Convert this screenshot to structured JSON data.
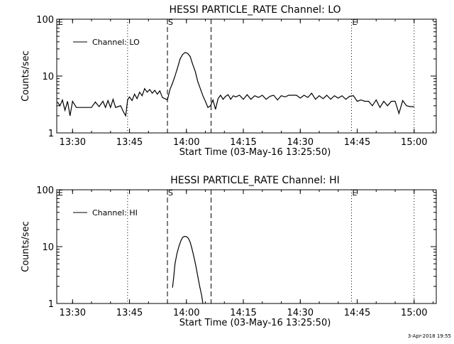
{
  "footer_timestamp": "3-Apr-2018 19:55",
  "chart_data": [
    {
      "type": "line",
      "title": "HESSI PARTICLE_RATE Channel: LO",
      "xlabel": "Start Time (03-May-16 13:25:50)",
      "ylabel": "Counts/sec",
      "yscale": "log",
      "ylim": [
        1,
        100
      ],
      "xlim": [
        "13:25:50",
        "15:05:50"
      ],
      "xticks": [
        "13:30",
        "13:45",
        "14:00",
        "14:15",
        "14:30",
        "14:45",
        "15:00"
      ],
      "yticks": [
        "1",
        "10",
        "100"
      ],
      "legend": {
        "position": "top-left",
        "entries": [
          "Channel: LO"
        ]
      },
      "markers": [
        {
          "time": "13:44:30",
          "label": "",
          "style": "dotted"
        },
        {
          "time": "13:55:00",
          "label": "S",
          "style": "dashed"
        },
        {
          "time": "14:06:30",
          "label": "",
          "style": "dashed"
        },
        {
          "time": "14:43:30",
          "label": "E",
          "style": "dotted"
        },
        {
          "time": "15:00:00",
          "label": "",
          "style": "dotted"
        }
      ],
      "corner_labels": [
        "E"
      ],
      "series": [
        {
          "name": "Channel: LO",
          "x": [
            "13:26:00",
            "13:26:40",
            "13:27:20",
            "13:28:00",
            "13:28:40",
            "13:29:20",
            "13:30:00",
            "13:31:00",
            "13:32:00",
            "13:33:00",
            "13:34:00",
            "13:35:00",
            "13:36:00",
            "13:37:00",
            "13:38:00",
            "13:38:40",
            "13:39:20",
            "13:40:00",
            "13:40:40",
            "13:41:20",
            "13:42:00",
            "13:42:40",
            "13:43:20",
            "13:44:00",
            "13:44:30",
            "13:45:00",
            "13:45:40",
            "13:46:20",
            "13:47:00",
            "13:47:40",
            "13:48:20",
            "13:49:00",
            "13:49:40",
            "13:50:20",
            "13:51:00",
            "13:51:40",
            "13:52:20",
            "13:53:00",
            "13:53:40",
            "13:54:20",
            "13:55:00",
            "13:55:40",
            "13:56:20",
            "13:57:00",
            "13:57:40",
            "13:58:20",
            "13:59:00",
            "13:59:40",
            "14:00:20",
            "14:01:00",
            "14:01:40",
            "14:02:20",
            "14:03:00",
            "14:03:40",
            "14:04:20",
            "14:05:00",
            "14:05:40",
            "14:06:20",
            "14:07:00",
            "14:07:40",
            "14:08:20",
            "14:09:00",
            "14:09:40",
            "14:10:20",
            "14:11:00",
            "14:11:40",
            "14:12:20",
            "14:13:00",
            "14:14:00",
            "14:15:00",
            "14:16:00",
            "14:17:00",
            "14:18:00",
            "14:19:00",
            "14:20:00",
            "14:21:00",
            "14:22:00",
            "14:23:00",
            "14:24:00",
            "14:25:00",
            "14:26:00",
            "14:27:00",
            "14:28:00",
            "14:29:00",
            "14:30:00",
            "14:31:00",
            "14:32:00",
            "14:33:00",
            "14:34:00",
            "14:35:00",
            "14:36:00",
            "14:37:00",
            "14:38:00",
            "14:39:00",
            "14:40:00",
            "14:41:00",
            "14:42:00",
            "14:43:00",
            "14:44:00",
            "14:45:00",
            "14:46:00",
            "14:47:00",
            "14:48:00",
            "14:49:00",
            "14:50:00",
            "14:51:00",
            "14:52:00",
            "14:53:00",
            "14:54:00",
            "14:55:00",
            "14:56:00",
            "14:57:00",
            "14:58:00",
            "14:59:00",
            "15:00:00"
          ],
          "y": [
            3.5,
            3.0,
            3.8,
            2.5,
            3.6,
            2.0,
            3.6,
            2.8,
            2.8,
            2.8,
            2.8,
            2.8,
            3.5,
            2.9,
            3.6,
            2.8,
            3.7,
            2.8,
            3.9,
            2.8,
            2.9,
            3.0,
            2.4,
            2.0,
            3.8,
            4.3,
            3.7,
            4.8,
            4.0,
            5.2,
            4.5,
            6.0,
            5.2,
            5.8,
            5.0,
            5.6,
            4.8,
            5.5,
            4.2,
            4.0,
            3.8,
            5.8,
            7.5,
            10.0,
            14.0,
            20.0,
            24.0,
            26.0,
            25.0,
            22.0,
            16.0,
            12.0,
            8.0,
            6.0,
            4.5,
            3.6,
            2.8,
            3.0,
            3.8,
            2.6,
            4.0,
            4.6,
            3.9,
            4.4,
            4.7,
            3.9,
            4.5,
            4.3,
            4.6,
            3.9,
            4.7,
            3.9,
            4.5,
            4.2,
            4.6,
            3.9,
            4.4,
            4.6,
            3.8,
            4.5,
            4.3,
            4.6,
            4.6,
            4.6,
            4.1,
            4.6,
            4.2,
            5.0,
            3.9,
            4.5,
            4.0,
            4.6,
            3.9,
            4.5,
            4.1,
            4.5,
            3.9,
            4.4,
            4.5,
            3.6,
            3.8,
            3.6,
            3.6,
            3.0,
            3.8,
            2.8,
            3.6,
            3.0,
            3.6,
            3.6,
            2.2,
            3.7,
            3.0,
            2.9,
            2.9
          ]
        }
      ]
    },
    {
      "type": "line",
      "title": "HESSI PARTICLE_RATE Channel: HI",
      "xlabel": "Start Time (03-May-16 13:25:50)",
      "ylabel": "Counts/sec",
      "yscale": "log",
      "ylim": [
        1,
        100
      ],
      "xlim": [
        "13:25:50",
        "15:05:50"
      ],
      "xticks": [
        "13:30",
        "13:45",
        "14:00",
        "14:15",
        "14:30",
        "14:45",
        "15:00"
      ],
      "yticks": [
        "1",
        "10",
        "100"
      ],
      "legend": {
        "position": "top-left",
        "entries": [
          "Channel: HI"
        ]
      },
      "markers": [
        {
          "time": "13:44:30",
          "label": "",
          "style": "dotted"
        },
        {
          "time": "13:55:00",
          "label": "S",
          "style": "dashed"
        },
        {
          "time": "14:06:30",
          "label": "",
          "style": "dashed"
        },
        {
          "time": "14:43:30",
          "label": "E",
          "style": "dotted"
        },
        {
          "time": "15:00:00",
          "label": "",
          "style": "dotted"
        }
      ],
      "corner_labels": [
        "E"
      ],
      "series": [
        {
          "name": "Channel: HI",
          "x": [
            "13:56:20",
            "13:56:40",
            "13:57:00",
            "13:57:30",
            "13:58:00",
            "13:58:30",
            "13:59:00",
            "13:59:30",
            "14:00:00",
            "14:00:30",
            "14:01:00",
            "14:01:30",
            "14:02:00",
            "14:02:30",
            "14:03:00",
            "14:03:30",
            "14:04:00",
            "14:04:20"
          ],
          "y": [
            1.9,
            3.0,
            5.0,
            7.5,
            10.0,
            12.5,
            14.5,
            15.2,
            15.0,
            14.0,
            12.0,
            9.0,
            6.5,
            4.5,
            3.0,
            2.0,
            1.4,
            1.0
          ]
        }
      ]
    }
  ]
}
